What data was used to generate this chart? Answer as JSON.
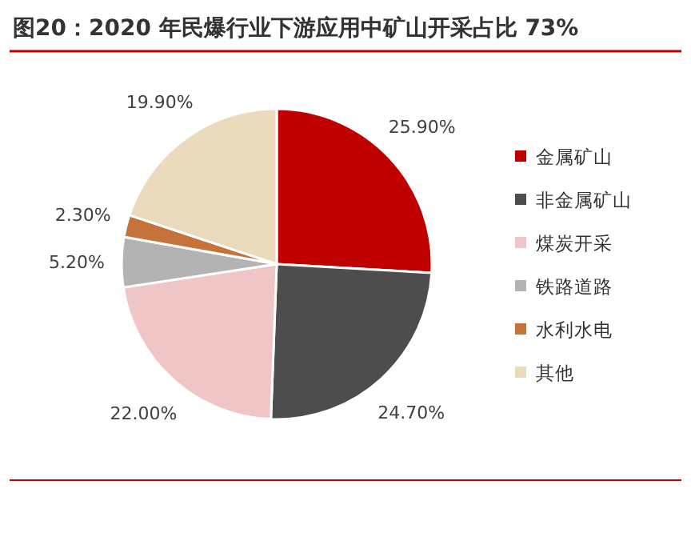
{
  "chart_data": {
    "type": "pie",
    "title": "图20：2020 年民爆行业下游应用中矿山开采占比 73%",
    "categories": [
      "金属矿山",
      "非金属矿山",
      "煤炭开采",
      "铁路道路",
      "水利水电",
      "其他"
    ],
    "values": [
      25.9,
      24.7,
      22.0,
      5.2,
      2.3,
      19.9
    ],
    "value_labels": [
      "25.90%",
      "24.70%",
      "22.00%",
      "5.20%",
      "2.30%",
      "19.90%"
    ],
    "colors": [
      "#c00000",
      "#4d4d4d",
      "#f0c5c5",
      "#b3b3b3",
      "#c5723b",
      "#ebdbbd"
    ],
    "legend": "right"
  }
}
